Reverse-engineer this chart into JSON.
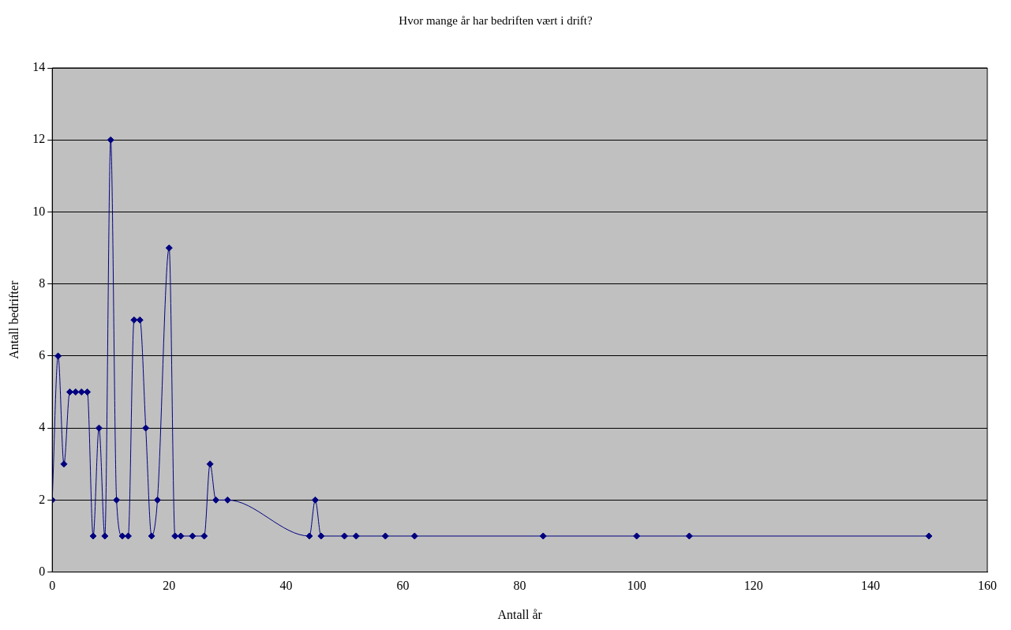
{
  "chart_data": {
    "type": "line",
    "title": "Hvor mange år har bedriften vært i drift?",
    "xlabel": "Antall år",
    "ylabel": "Antall bedrifter",
    "x": [
      0,
      1,
      2,
      3,
      4,
      5,
      6,
      7,
      8,
      9,
      10,
      11,
      12,
      13,
      14,
      15,
      16,
      17,
      18,
      20,
      21,
      22,
      24,
      26,
      27,
      28,
      30,
      44,
      45,
      46,
      50,
      52,
      57,
      62,
      84,
      100,
      109,
      150
    ],
    "series": [
      {
        "color": "#000080",
        "values": [
          2,
          6,
          3,
          5,
          5,
          5,
          5,
          1,
          4,
          1,
          12,
          2,
          1,
          1,
          7,
          7,
          4,
          1,
          2,
          9,
          1,
          1,
          1,
          1,
          3,
          2,
          2,
          1,
          2,
          1,
          1,
          1,
          1,
          1,
          1,
          1,
          1,
          1
        ]
      }
    ],
    "xlim": [
      0,
      160
    ],
    "xticks": [
      0,
      20,
      40,
      60,
      80,
      100,
      120,
      140,
      160
    ],
    "ylim": [
      0,
      14
    ],
    "yticks": [
      0,
      2,
      4,
      6,
      8,
      10,
      12,
      14
    ],
    "grid": "y",
    "legend": false,
    "marker": "diamond",
    "line_style": "solid"
  }
}
